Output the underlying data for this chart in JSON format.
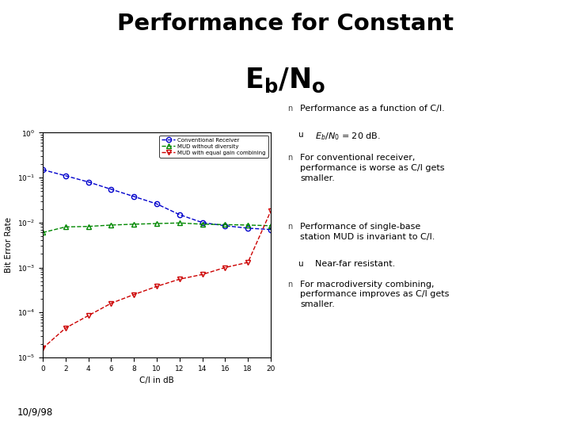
{
  "title_line1": "Performance for Constant",
  "title_line2": "E",
  "xlabel": "C/I in dB",
  "ylabel": "Bit Error Rate",
  "xlim": [
    0,
    20
  ],
  "x": [
    0,
    2,
    4,
    6,
    8,
    10,
    12,
    14,
    16,
    18,
    20
  ],
  "conventional": [
    0.15,
    0.11,
    0.08,
    0.055,
    0.038,
    0.026,
    0.015,
    0.01,
    0.0085,
    0.0075,
    0.007
  ],
  "mud_no_diversity": [
    0.006,
    0.008,
    0.0082,
    0.0088,
    0.0092,
    0.0095,
    0.0098,
    0.0092,
    0.009,
    0.0088,
    0.0085
  ],
  "mud_equal_gain": [
    1.6e-05,
    4.5e-05,
    8.5e-05,
    0.00016,
    0.00025,
    0.00038,
    0.00055,
    0.0007,
    0.001,
    0.0013,
    0.018
  ],
  "colors": {
    "conventional": "#0000cc",
    "mud_no_diversity": "#008800",
    "mud_equal_gain": "#cc0000"
  },
  "legend_labels": [
    "Conventional Receiver",
    "MUD without diversity",
    "MUD with equal gain combining"
  ],
  "date": "10/9/98",
  "background_color": "#ffffff"
}
